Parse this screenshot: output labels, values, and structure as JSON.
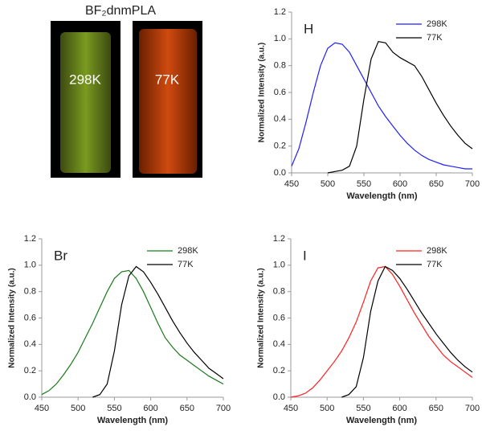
{
  "photo": {
    "title": "BF₂dnmPLA",
    "labels": [
      "298K",
      "77K"
    ]
  },
  "chart_data": [
    {
      "type": "line",
      "panel_label": "H",
      "x_label": "Wavelength (nm)",
      "y_label": "Normalized Intensity (a.u.)",
      "legend": "upper right",
      "grid": false,
      "xlim": [
        450,
        700
      ],
      "xticks": [
        450,
        500,
        550,
        600,
        650,
        700
      ],
      "ylim": [
        0,
        1.2
      ],
      "yticks": [
        {
          "value": 0,
          "label": "0.0"
        },
        {
          "value": 0.2,
          "label": "0.2"
        },
        {
          "value": 0.4,
          "label": "0.4"
        },
        {
          "value": 0.6,
          "label": "0.6"
        },
        {
          "value": 0.8,
          "label": "0.8"
        },
        {
          "value": 1,
          "label": "1.0"
        },
        {
          "value": 1.2,
          "label": "1.2"
        }
      ],
      "x": [
        450,
        460,
        470,
        480,
        490,
        500,
        510,
        520,
        530,
        540,
        550,
        560,
        570,
        580,
        590,
        600,
        610,
        620,
        630,
        640,
        650,
        660,
        670,
        680,
        690,
        700
      ],
      "series": [
        {
          "name": "298K",
          "color": "#1f1fff",
          "values": [
            0.05,
            0.18,
            0.38,
            0.6,
            0.8,
            0.93,
            0.97,
            0.96,
            0.9,
            0.8,
            0.7,
            0.6,
            0.5,
            0.42,
            0.35,
            0.28,
            0.22,
            0.17,
            0.13,
            0.1,
            0.08,
            0.06,
            0.05,
            0.04,
            0.03,
            0.03
          ]
        },
        {
          "name": "77K",
          "color": "#000000",
          "values": [
            null,
            null,
            null,
            null,
            null,
            0.0,
            0.01,
            0.02,
            0.05,
            0.2,
            0.55,
            0.85,
            0.98,
            0.97,
            0.9,
            0.86,
            0.83,
            0.8,
            0.72,
            0.62,
            0.52,
            0.43,
            0.35,
            0.28,
            0.22,
            0.18
          ]
        }
      ]
    },
    {
      "type": "line",
      "panel_label": "Br",
      "x_label": "Wavelength (nm)",
      "y_label": "Normalized Intensity (a.u.)",
      "legend": "upper right",
      "grid": false,
      "xlim": [
        450,
        700
      ],
      "xticks": [
        450,
        500,
        550,
        600,
        650,
        700
      ],
      "ylim": [
        0,
        1.2
      ],
      "yticks": [
        {
          "value": 0,
          "label": "0.0"
        },
        {
          "value": 0.2,
          "label": "0.2"
        },
        {
          "value": 0.4,
          "label": "0.4"
        },
        {
          "value": 0.6,
          "label": "0.6"
        },
        {
          "value": 0.8,
          "label": "0.8"
        },
        {
          "value": 1,
          "label": "1.0"
        },
        {
          "value": 1.2,
          "label": "1.2"
        }
      ],
      "x": [
        450,
        460,
        470,
        480,
        490,
        500,
        510,
        520,
        530,
        540,
        550,
        560,
        570,
        580,
        590,
        600,
        610,
        620,
        630,
        640,
        650,
        660,
        670,
        680,
        690,
        700
      ],
      "series": [
        {
          "name": "298K",
          "color": "#1a7a1a",
          "values": [
            0.02,
            0.05,
            0.1,
            0.17,
            0.25,
            0.34,
            0.45,
            0.56,
            0.68,
            0.8,
            0.9,
            0.95,
            0.96,
            0.9,
            0.8,
            0.68,
            0.56,
            0.45,
            0.38,
            0.32,
            0.28,
            0.24,
            0.2,
            0.16,
            0.13,
            0.1
          ]
        },
        {
          "name": "77K",
          "color": "#000000",
          "values": [
            null,
            null,
            null,
            null,
            null,
            null,
            null,
            0.0,
            0.02,
            0.1,
            0.35,
            0.7,
            0.92,
            0.99,
            0.95,
            0.87,
            0.78,
            0.68,
            0.58,
            0.49,
            0.41,
            0.34,
            0.28,
            0.22,
            0.18,
            0.14
          ]
        }
      ]
    },
    {
      "type": "line",
      "panel_label": "I",
      "x_label": "Wavelength (nm)",
      "y_label": "Normalized Intensity (a.u.)",
      "legend": "upper right",
      "grid": false,
      "xlim": [
        450,
        700
      ],
      "xticks": [
        450,
        500,
        550,
        600,
        650,
        700
      ],
      "ylim": [
        0,
        1.2
      ],
      "yticks": [
        {
          "value": 0,
          "label": "0.0"
        },
        {
          "value": 0.2,
          "label": "0.2"
        },
        {
          "value": 0.4,
          "label": "0.4"
        },
        {
          "value": 0.6,
          "label": "0.6"
        },
        {
          "value": 0.8,
          "label": "0.8"
        },
        {
          "value": 1,
          "label": "1.0"
        },
        {
          "value": 1.2,
          "label": "1.2"
        }
      ],
      "x": [
        450,
        460,
        470,
        480,
        490,
        500,
        510,
        520,
        530,
        540,
        550,
        560,
        570,
        580,
        590,
        600,
        610,
        620,
        630,
        640,
        650,
        660,
        670,
        680,
        690,
        700
      ],
      "series": [
        {
          "name": "298K",
          "color": "#ff2020",
          "values": [
            0.0,
            0.01,
            0.03,
            0.07,
            0.13,
            0.2,
            0.27,
            0.35,
            0.45,
            0.57,
            0.72,
            0.88,
            0.98,
            0.99,
            0.93,
            0.84,
            0.74,
            0.64,
            0.55,
            0.46,
            0.39,
            0.32,
            0.27,
            0.23,
            0.19,
            0.15
          ]
        },
        {
          "name": "77K",
          "color": "#000000",
          "values": [
            null,
            null,
            null,
            null,
            null,
            null,
            null,
            0.0,
            0.02,
            0.08,
            0.3,
            0.65,
            0.88,
            0.99,
            0.96,
            0.9,
            0.82,
            0.73,
            0.64,
            0.56,
            0.48,
            0.41,
            0.34,
            0.28,
            0.23,
            0.19
          ]
        }
      ]
    }
  ]
}
